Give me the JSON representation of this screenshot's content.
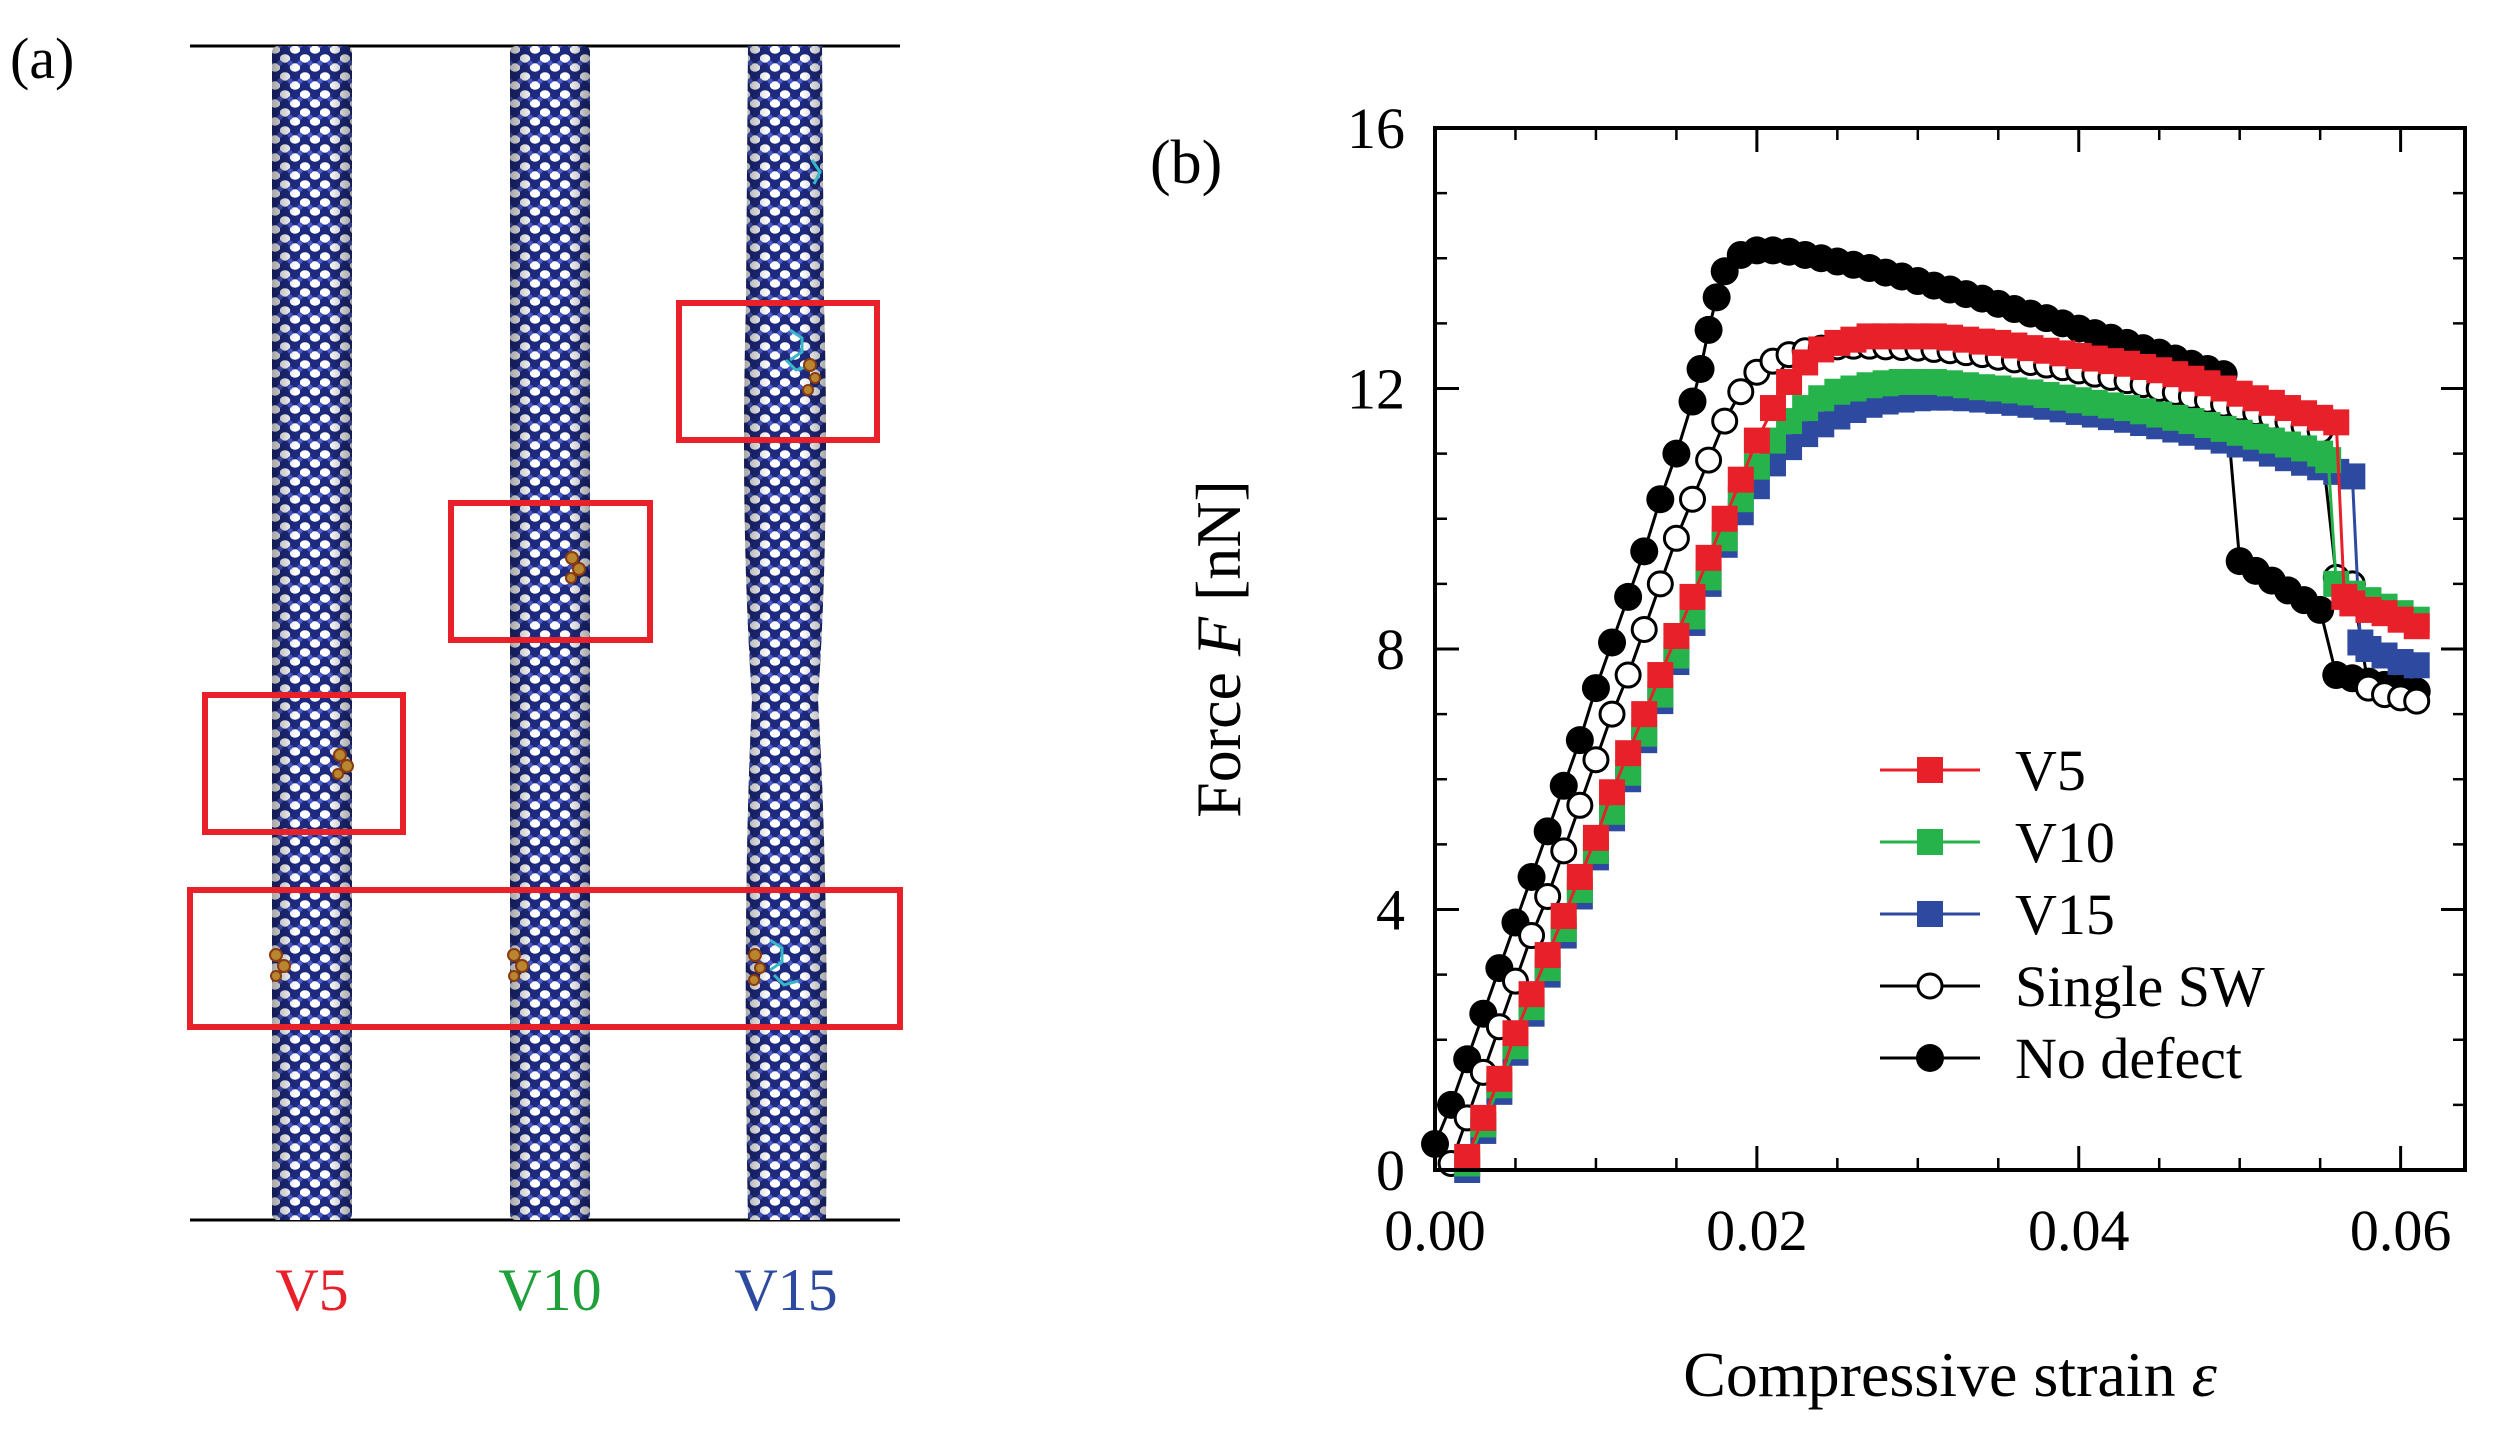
{
  "panel_a": {
    "label": "(a)",
    "tubes": [
      {
        "name": "V5",
        "color": "#e8202a"
      },
      {
        "name": "V10",
        "color": "#1fa03a"
      },
      {
        "name": "V15",
        "color": "#2e4aa0"
      }
    ],
    "atom_color": "#2d3a9e",
    "defect_color": "#b8862e",
    "highlight_color": "#e8202a"
  },
  "chart_data": {
    "type": "scatter",
    "panel_label": "(b)",
    "title": "",
    "xlabel_pre": "Compressive strain ",
    "xlabel_sym": "ε",
    "ylabel_pre": "Force ",
    "ylabel_sym": "F",
    "ylabel_post": " [nN]",
    "xlim": [
      0,
      0.064
    ],
    "ylim": [
      0,
      16
    ],
    "xticks": [
      0.0,
      0.02,
      0.04,
      0.06
    ],
    "xtick_labels": [
      "0.00",
      "0.02",
      "0.04",
      "0.06"
    ],
    "yticks": [
      0,
      4,
      8,
      12,
      16
    ],
    "ytick_labels": [
      "0",
      "4",
      "8",
      "12",
      "16"
    ],
    "legend_position": "bottom-right",
    "series": [
      {
        "name": "V5",
        "marker": "square",
        "color": "#e8202a",
        "x": [
          0.002,
          0.003,
          0.004,
          0.005,
          0.006,
          0.007,
          0.008,
          0.009,
          0.01,
          0.011,
          0.012,
          0.013,
          0.014,
          0.015,
          0.016,
          0.017,
          0.018,
          0.019,
          0.02,
          0.021,
          0.022,
          0.023,
          0.024,
          0.025,
          0.026,
          0.027,
          0.028,
          0.029,
          0.03,
          0.031,
          0.032,
          0.033,
          0.034,
          0.035,
          0.036,
          0.037,
          0.038,
          0.039,
          0.04,
          0.041,
          0.042,
          0.043,
          0.044,
          0.045,
          0.046,
          0.047,
          0.048,
          0.049,
          0.05,
          0.051,
          0.052,
          0.053,
          0.054,
          0.055,
          0.056,
          0.0565,
          0.057,
          0.058,
          0.059,
          0.06,
          0.061
        ],
        "y": [
          0.2,
          0.8,
          1.4,
          2.1,
          2.7,
          3.3,
          3.9,
          4.5,
          5.1,
          5.8,
          6.4,
          7.0,
          7.6,
          8.2,
          8.8,
          9.4,
          10.0,
          10.6,
          11.2,
          11.7,
          12.1,
          12.4,
          12.6,
          12.7,
          12.75,
          12.8,
          12.8,
          12.8,
          12.8,
          12.8,
          12.78,
          12.75,
          12.72,
          12.7,
          12.66,
          12.62,
          12.58,
          12.54,
          12.5,
          12.46,
          12.42,
          12.38,
          12.33,
          12.28,
          12.22,
          12.15,
          12.08,
          12.0,
          11.92,
          11.85,
          11.78,
          11.7,
          11.62,
          11.55,
          11.48,
          8.8,
          8.7,
          8.6,
          8.55,
          8.45,
          8.35
        ]
      },
      {
        "name": "V10",
        "marker": "square",
        "color": "#27b34b",
        "x": [
          0.002,
          0.003,
          0.004,
          0.005,
          0.006,
          0.007,
          0.008,
          0.009,
          0.01,
          0.011,
          0.012,
          0.013,
          0.014,
          0.015,
          0.016,
          0.017,
          0.018,
          0.019,
          0.02,
          0.021,
          0.022,
          0.023,
          0.024,
          0.025,
          0.026,
          0.027,
          0.028,
          0.029,
          0.03,
          0.031,
          0.032,
          0.033,
          0.034,
          0.035,
          0.036,
          0.037,
          0.038,
          0.039,
          0.04,
          0.041,
          0.042,
          0.043,
          0.044,
          0.045,
          0.046,
          0.047,
          0.048,
          0.049,
          0.05,
          0.051,
          0.052,
          0.053,
          0.054,
          0.055,
          0.0555,
          0.056,
          0.057,
          0.058,
          0.059,
          0.06,
          0.061
        ],
        "y": [
          0.1,
          0.7,
          1.3,
          1.9,
          2.5,
          3.1,
          3.7,
          4.3,
          4.9,
          5.5,
          6.1,
          6.7,
          7.3,
          7.9,
          8.5,
          9.1,
          9.7,
          10.3,
          10.8,
          11.2,
          11.5,
          11.7,
          11.85,
          11.95,
          12.0,
          12.05,
          12.08,
          12.1,
          12.1,
          12.1,
          12.08,
          12.05,
          12.02,
          12.0,
          11.97,
          11.94,
          11.9,
          11.86,
          11.82,
          11.78,
          11.74,
          11.7,
          11.65,
          11.6,
          11.55,
          11.5,
          11.44,
          11.38,
          11.32,
          11.26,
          11.2,
          11.14,
          11.08,
          11.0,
          10.9,
          9.0,
          8.85,
          8.75,
          8.65,
          8.55,
          8.45
        ]
      },
      {
        "name": "V15",
        "marker": "square",
        "color": "#2e4aa0",
        "x": [
          0.002,
          0.003,
          0.004,
          0.005,
          0.006,
          0.007,
          0.008,
          0.009,
          0.01,
          0.011,
          0.012,
          0.013,
          0.014,
          0.015,
          0.016,
          0.017,
          0.018,
          0.019,
          0.02,
          0.021,
          0.022,
          0.023,
          0.024,
          0.025,
          0.026,
          0.027,
          0.028,
          0.029,
          0.03,
          0.031,
          0.032,
          0.033,
          0.034,
          0.035,
          0.036,
          0.037,
          0.038,
          0.039,
          0.04,
          0.041,
          0.042,
          0.043,
          0.044,
          0.045,
          0.046,
          0.047,
          0.048,
          0.049,
          0.05,
          0.051,
          0.052,
          0.053,
          0.054,
          0.055,
          0.056,
          0.057,
          0.0575,
          0.058,
          0.059,
          0.06,
          0.061
        ],
        "y": [
          0.0,
          0.6,
          1.2,
          1.8,
          2.4,
          3.0,
          3.6,
          4.2,
          4.8,
          5.4,
          6.0,
          6.6,
          7.2,
          7.8,
          8.4,
          9.0,
          9.6,
          10.1,
          10.5,
          10.85,
          11.1,
          11.3,
          11.45,
          11.57,
          11.67,
          11.75,
          11.8,
          11.83,
          11.85,
          11.86,
          11.86,
          11.85,
          11.83,
          11.81,
          11.78,
          11.75,
          11.72,
          11.68,
          11.64,
          11.6,
          11.56,
          11.52,
          11.47,
          11.42,
          11.37,
          11.32,
          11.26,
          11.2,
          11.14,
          11.08,
          11.0,
          10.93,
          10.86,
          10.79,
          10.72,
          10.65,
          8.1,
          8.0,
          7.9,
          7.8,
          7.75
        ]
      },
      {
        "name": "Single SW",
        "marker": "circle-open",
        "color": "#000000",
        "x": [
          0.001,
          0.002,
          0.003,
          0.004,
          0.005,
          0.006,
          0.007,
          0.008,
          0.009,
          0.01,
          0.011,
          0.012,
          0.013,
          0.014,
          0.015,
          0.016,
          0.017,
          0.018,
          0.019,
          0.02,
          0.021,
          0.022,
          0.023,
          0.024,
          0.025,
          0.026,
          0.027,
          0.028,
          0.029,
          0.03,
          0.031,
          0.032,
          0.033,
          0.034,
          0.035,
          0.036,
          0.037,
          0.038,
          0.039,
          0.04,
          0.041,
          0.042,
          0.043,
          0.044,
          0.045,
          0.046,
          0.047,
          0.048,
          0.049,
          0.05,
          0.051,
          0.052,
          0.053,
          0.054,
          0.055,
          0.056,
          0.057,
          0.058,
          0.059,
          0.06,
          0.061
        ],
        "y": [
          0.1,
          0.8,
          1.5,
          2.2,
          2.9,
          3.6,
          4.2,
          4.9,
          5.6,
          6.3,
          7.0,
          7.6,
          8.3,
          9.0,
          9.7,
          10.3,
          10.9,
          11.5,
          11.95,
          12.25,
          12.42,
          12.52,
          12.58,
          12.62,
          12.64,
          12.65,
          12.65,
          12.64,
          12.63,
          12.62,
          12.6,
          12.58,
          12.55,
          12.52,
          12.48,
          12.44,
          12.4,
          12.36,
          12.32,
          12.27,
          12.22,
          12.17,
          12.12,
          12.06,
          12.0,
          11.94,
          11.88,
          11.82,
          11.76,
          11.7,
          11.63,
          11.56,
          11.49,
          11.42,
          11.35,
          9.1,
          9.0,
          7.4,
          7.3,
          7.25,
          7.2
        ]
      },
      {
        "name": "No defect",
        "marker": "circle-filled",
        "color": "#000000",
        "x": [
          0.0,
          0.001,
          0.002,
          0.003,
          0.004,
          0.005,
          0.006,
          0.007,
          0.008,
          0.009,
          0.01,
          0.011,
          0.012,
          0.013,
          0.014,
          0.015,
          0.016,
          0.0165,
          0.017,
          0.0175,
          0.018,
          0.019,
          0.02,
          0.021,
          0.022,
          0.023,
          0.024,
          0.025,
          0.026,
          0.027,
          0.028,
          0.029,
          0.03,
          0.031,
          0.032,
          0.033,
          0.034,
          0.035,
          0.036,
          0.037,
          0.038,
          0.039,
          0.04,
          0.041,
          0.042,
          0.043,
          0.044,
          0.045,
          0.046,
          0.047,
          0.048,
          0.049,
          0.05,
          0.051,
          0.052,
          0.053,
          0.054,
          0.055,
          0.056,
          0.057,
          0.058,
          0.059,
          0.06,
          0.061
        ],
        "y": [
          0.4,
          1.0,
          1.7,
          2.4,
          3.1,
          3.8,
          4.5,
          5.2,
          5.9,
          6.6,
          7.4,
          8.1,
          8.8,
          9.5,
          10.3,
          11.0,
          11.8,
          12.3,
          12.9,
          13.4,
          13.8,
          14.05,
          14.12,
          14.12,
          14.1,
          14.05,
          14.0,
          13.95,
          13.9,
          13.85,
          13.78,
          13.72,
          13.65,
          13.58,
          13.52,
          13.45,
          13.38,
          13.3,
          13.22,
          13.15,
          13.08,
          13.0,
          12.92,
          12.85,
          12.78,
          12.7,
          12.62,
          12.55,
          12.46,
          12.38,
          12.3,
          12.22,
          9.35,
          9.2,
          9.05,
          8.9,
          8.75,
          8.6,
          7.6,
          7.55,
          7.5,
          7.45,
          7.4,
          7.35
        ]
      }
    ]
  }
}
